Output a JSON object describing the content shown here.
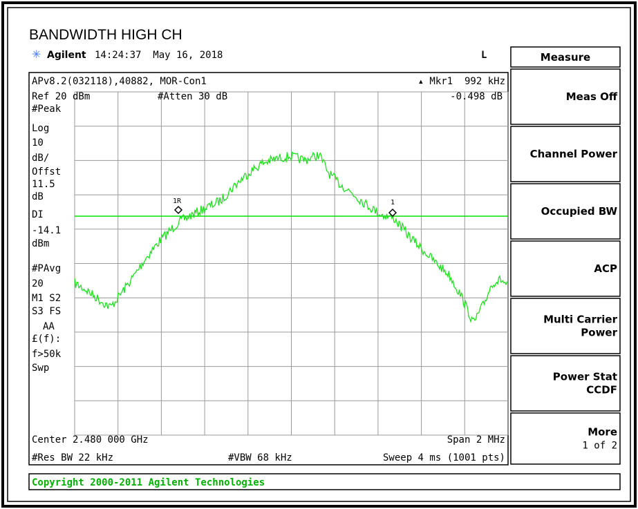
{
  "title": "BANDWIDTH HIGH CH",
  "header": {
    "brand": "Agilent",
    "timestamp": "14:24:37  May 16, 2018",
    "mode": "L"
  },
  "screen": {
    "top_left": [
      "APv8.2(032118),40882, MOR-Con1",
      "Ref 20 dBm"
    ],
    "attenuation": "#Atten 30 dB",
    "marker": [
      "▴ Mkr1  992 kHz",
      "-0.498 dB"
    ],
    "left_labels": [
      "#Peak",
      "Log",
      "10",
      "dB/",
      "Offst",
      "11.5",
      "dB",
      "DI",
      "-14.1",
      "dBm",
      "#PAvg",
      "20",
      "M1  S2",
      "S3  FS",
      "AA",
      "£(f):",
      "f>50k",
      "Swp"
    ],
    "marker_labels": [
      "1R",
      "1"
    ],
    "center": "Center 2.480 000 GHz",
    "span": "Span 2 MHz",
    "res_bw": "#Res BW 22 kHz",
    "vbw": "#VBW 68 kHz",
    "sweep": "Sweep 4 ms (1001 pts)"
  },
  "softkeys": {
    "menu": "Measure",
    "buttons": [
      [
        "Meas Off"
      ],
      [
        "Channel Power"
      ],
      [
        "Occupied BW"
      ],
      [
        "ACP"
      ],
      [
        "Multi Carrier",
        "Power"
      ],
      [
        "Power Stat",
        "CCDF"
      ],
      [
        "More",
        "1 of 2"
      ]
    ]
  },
  "status": "Copyright 2000-2011 Agilent Technologies"
}
